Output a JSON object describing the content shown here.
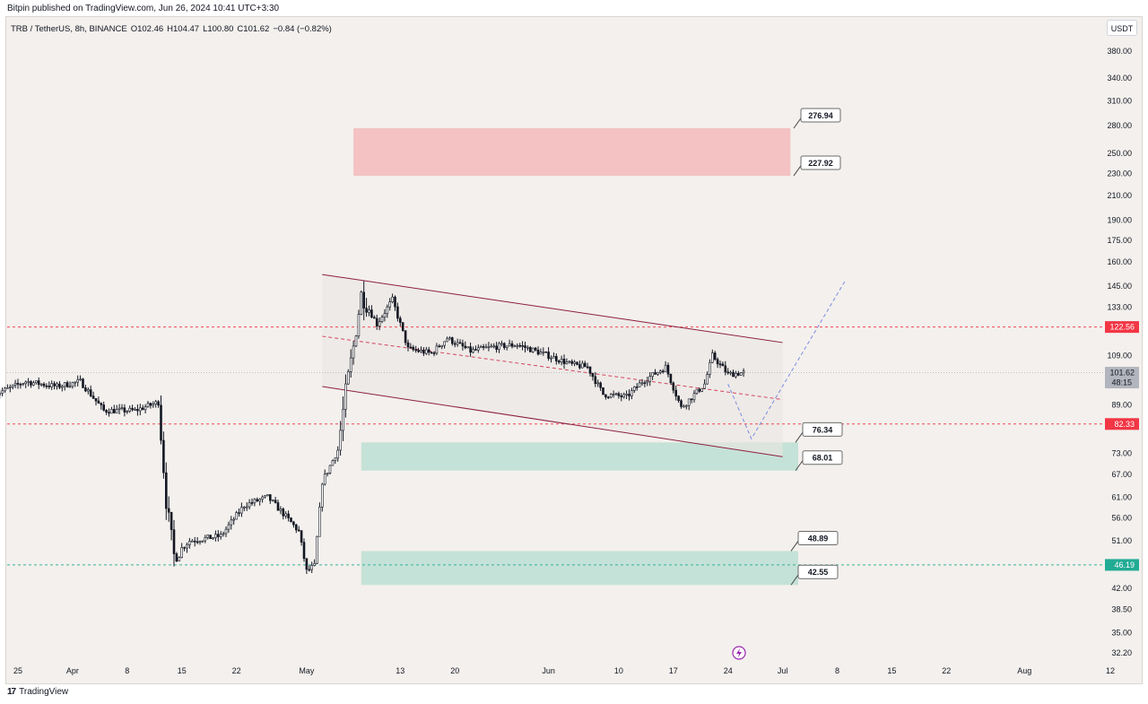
{
  "publisher": "Bitpin published on TradingView.com, Jun 26, 2024 10:41 UTC+3:30",
  "symbol": {
    "pair": "TRB / TetherUS, 8h, BINANCE",
    "open": "O102.46",
    "high": "H104.47",
    "low": "L100.80",
    "close": "C101.62",
    "change": "−0.84 (−0.82%)"
  },
  "currency": "USDT",
  "brand": "TradingView",
  "colors": {
    "candle": "#131722",
    "channel": "#8b1e3f",
    "resistance_zone": "#f4c2c2",
    "support_zone": "#c5e2d8",
    "red_level": "#f23645",
    "green_level": "#22ab94",
    "projection": "#7b8be0",
    "last_price": "#b2b5be"
  },
  "chart_data": {
    "type": "candlestick",
    "scale": "log",
    "ylim": [
      30.5,
      420
    ],
    "y_ticks": [
      "380.00",
      "340.00",
      "310.00",
      "280.00",
      "250.00",
      "230.00",
      "210.00",
      "190.00",
      "175.00",
      "160.00",
      "145.00",
      "133.00",
      "109.00",
      "89.00",
      "73.00",
      "67.00",
      "61.00",
      "56.00",
      "51.00",
      "42.00",
      "38.50",
      "35.00",
      "32.20"
    ],
    "x_ticks": [
      "25",
      "Apr",
      "8",
      "15",
      "22",
      "May",
      "13",
      "20",
      "Jun",
      "10",
      "17",
      "24",
      "Jul",
      "8",
      "15",
      "22",
      "Aug",
      "12"
    ],
    "price_labels": [
      {
        "text": "122.56",
        "color": "#f23645"
      },
      {
        "text": "82.33",
        "color": "#f23645"
      },
      {
        "text": "46.19",
        "color": "#22ab94"
      },
      {
        "text": "101.62",
        "sub": "48:15",
        "color": "#b2b5be"
      }
    ],
    "horizontal_levels": [
      {
        "value": 122.56,
        "color": "#f23645"
      },
      {
        "value": 82.33,
        "color": "#f23645"
      },
      {
        "value": 46.19,
        "color": "#22ab94"
      },
      {
        "value": 101.62,
        "color": "#b2b5be"
      }
    ],
    "zones": [
      {
        "kind": "resistance",
        "from_date": "May 7",
        "to_date": "Jul 2",
        "low": 227.92,
        "high": 276.94
      },
      {
        "kind": "support",
        "from_date": "May 8",
        "to_date": "Jul 3",
        "low": 68.01,
        "high": 76.34
      },
      {
        "kind": "support",
        "from_date": "May 8",
        "to_date": "Jul 3",
        "low": 42.55,
        "high": 48.89
      }
    ],
    "annotations": [
      "276.94",
      "227.92",
      "76.34",
      "68.01",
      "48.89",
      "42.55"
    ],
    "channel": {
      "upper": [
        [
          "May 3",
          152
        ],
        [
          "Jul 1",
          115
        ]
      ],
      "middle": [
        [
          "May 3",
          118
        ],
        [
          "Jul 1",
          91
        ]
      ],
      "lower": [
        [
          "May 3",
          96
        ],
        [
          "Jul 1",
          72
        ]
      ]
    },
    "projection": [
      [
        "Jun 24",
        97
      ],
      [
        "Jun 27",
        77.5
      ],
      [
        "Jul 9",
        148
      ]
    ],
    "series_anchors": [
      [
        "Mar 22",
        93
      ],
      [
        "Mar 26",
        98
      ],
      [
        "Mar 30",
        96
      ],
      [
        "Apr 2",
        98
      ],
      [
        "Apr 5",
        87
      ],
      [
        "Apr 9",
        87
      ],
      [
        "Apr 12",
        90
      ],
      [
        "Apr 13",
        60
      ],
      [
        "Apr 14",
        48
      ],
      [
        "Apr 16",
        51
      ],
      [
        "Apr 20",
        52
      ],
      [
        "Apr 23",
        59
      ],
      [
        "Apr 26",
        61
      ],
      [
        "Apr 28",
        57
      ],
      [
        "Apr 30",
        53
      ],
      [
        "May 1",
        45
      ],
      [
        "May 2",
        46
      ],
      [
        "May 3",
        65
      ],
      [
        "May 5",
        74
      ],
      [
        "May 6",
        94
      ],
      [
        "May 7",
        113
      ],
      [
        "May 8",
        140
      ],
      [
        "May 10",
        124
      ],
      [
        "May 12",
        137
      ],
      [
        "May 14",
        112
      ],
      [
        "May 17",
        110
      ],
      [
        "May 19",
        117
      ],
      [
        "May 22",
        111
      ],
      [
        "May 25",
        113
      ],
      [
        "May 28",
        114
      ],
      [
        "Jun 1",
        109
      ],
      [
        "Jun 4",
        105
      ],
      [
        "Jun 6",
        104
      ],
      [
        "Jun 8",
        93
      ],
      [
        "Jun 11",
        92
      ],
      [
        "Jun 13",
        98
      ],
      [
        "Jun 16",
        104
      ],
      [
        "Jun 18",
        88
      ],
      [
        "Jun 21",
        97
      ],
      [
        "Jun 22",
        109
      ],
      [
        "Jun 24",
        101
      ],
      [
        "Jun 26",
        101.62
      ]
    ],
    "candles_drawn": 293
  }
}
